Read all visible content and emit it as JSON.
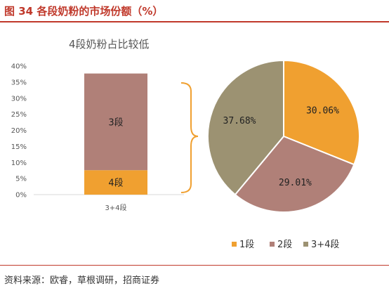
{
  "header": {
    "figure_title": "图 34  各段奶粉的市场份额（%）",
    "source": "资料来源：欧睿，草根调研，招商证券"
  },
  "chart_data": [
    {
      "type": "bar",
      "title": "4段奶粉占比较低",
      "categories": [
        "3+4段"
      ],
      "series": [
        {
          "name": "4段",
          "values": [
            7.6
          ],
          "color": "#F0A030"
        },
        {
          "name": "3段",
          "values": [
            30.08
          ],
          "color": "#B08078"
        }
      ],
      "ylim": [
        0,
        40
      ],
      "yticks": [
        "0%",
        "5%",
        "10%",
        "15%",
        "20%",
        "25%",
        "30%",
        "35%",
        "40%"
      ],
      "stacked": true,
      "grid": false
    },
    {
      "type": "pie",
      "slices": [
        {
          "name": "1段",
          "value": 30.06,
          "label": "30.06%",
          "color": "#F0A030"
        },
        {
          "name": "2段",
          "value": 29.01,
          "label": "29.01%",
          "color": "#B08078"
        },
        {
          "name": "3+4段",
          "value": 37.68,
          "label": "37.68%",
          "color": "#9C9272"
        }
      ],
      "legend_position": "bottom"
    }
  ]
}
